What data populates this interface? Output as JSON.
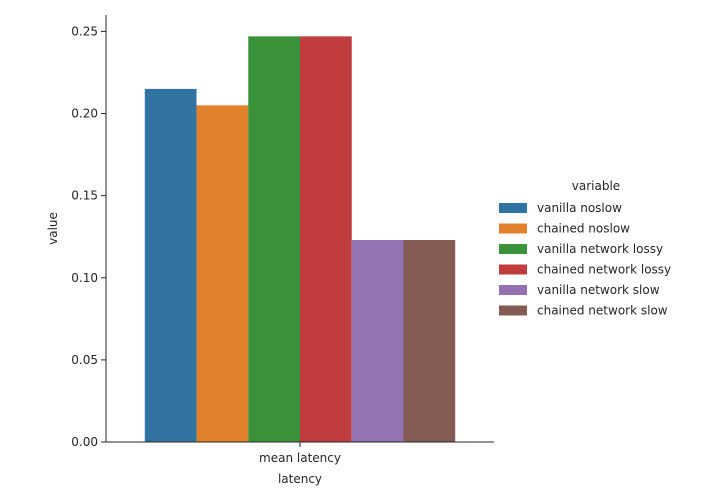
{
  "chart_data": {
    "type": "bar",
    "title": "",
    "xlabel": "latency",
    "ylabel": "value",
    "categories": [
      "mean latency"
    ],
    "ylim": [
      0,
      0.26
    ],
    "yticks": [
      0.0,
      0.05,
      0.1,
      0.15,
      0.2,
      0.25
    ],
    "ytick_labels": [
      "0.00",
      "0.05",
      "0.10",
      "0.15",
      "0.20",
      "0.25"
    ],
    "grid": false,
    "legend": {
      "title": "variable",
      "placement": "right"
    },
    "series": [
      {
        "name": "vanilla noslow",
        "values": [
          0.215
        ],
        "color": "#3274a1"
      },
      {
        "name": "chained noslow",
        "values": [
          0.205
        ],
        "color": "#e1812c"
      },
      {
        "name": "vanilla network lossy",
        "values": [
          0.247
        ],
        "color": "#3a923a"
      },
      {
        "name": "chained network lossy",
        "values": [
          0.247
        ],
        "color": "#c03d3e"
      },
      {
        "name": "vanilla network slow",
        "values": [
          0.123
        ],
        "color": "#9372b2"
      },
      {
        "name": "chained network slow",
        "values": [
          0.123
        ],
        "color": "#845b53"
      }
    ]
  }
}
